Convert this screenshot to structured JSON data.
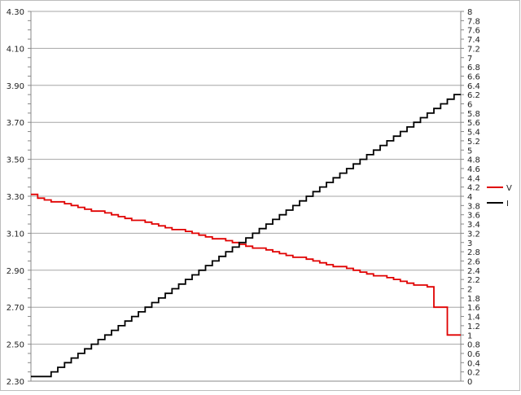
{
  "chart_data": {
    "type": "line",
    "title": "",
    "xlabel": "",
    "grid": true,
    "legend_placement": "right",
    "y_left": {
      "min": 2.3,
      "max": 4.3,
      "major_step": 0.2,
      "minor_step": 0.05,
      "tick_labels": [
        "2.30",
        "2.50",
        "2.70",
        "2.90",
        "3.10",
        "3.30",
        "3.50",
        "3.70",
        "3.90",
        "4.10",
        "4.30"
      ]
    },
    "y_right": {
      "min": 0,
      "max": 8,
      "step": 0.2,
      "tick_labels": [
        "0",
        "0.2",
        "0.4",
        "0.6",
        "0.8",
        "1",
        "1.2",
        "1.4",
        "1.6",
        "1.8",
        "2",
        "2.2",
        "2.4",
        "2.6",
        "2.8",
        "3",
        "3.2",
        "3.4",
        "3.6",
        "3.8",
        "4",
        "4.2",
        "4.4",
        "4.6",
        "4.8",
        "5",
        "5.2",
        "5.4",
        "5.6",
        "5.8",
        "6",
        "6.2",
        "6.4",
        "6.6",
        "6.8",
        "7",
        "7.2",
        "7.4",
        "7.6",
        "7.8",
        "8"
      ]
    },
    "series": [
      {
        "name": "V",
        "axis": "left",
        "color": "#e00000",
        "values": [
          3.31,
          3.29,
          3.28,
          3.27,
          3.27,
          3.26,
          3.25,
          3.24,
          3.23,
          3.22,
          3.22,
          3.21,
          3.2,
          3.19,
          3.18,
          3.17,
          3.17,
          3.16,
          3.15,
          3.14,
          3.13,
          3.12,
          3.12,
          3.11,
          3.1,
          3.09,
          3.08,
          3.07,
          3.07,
          3.06,
          3.05,
          3.04,
          3.03,
          3.02,
          3.02,
          3.01,
          3.0,
          2.99,
          2.98,
          2.97,
          2.97,
          2.96,
          2.95,
          2.94,
          2.93,
          2.92,
          2.92,
          2.91,
          2.9,
          2.89,
          2.88,
          2.87,
          2.87,
          2.86,
          2.85,
          2.84,
          2.83,
          2.82,
          2.82,
          2.81,
          2.7,
          2.7,
          2.55,
          2.55
        ]
      },
      {
        "name": "I",
        "axis": "right",
        "color": "#000000",
        "values": [
          0.1,
          0.1,
          0.1,
          0.2,
          0.3,
          0.4,
          0.5,
          0.6,
          0.7,
          0.8,
          0.9,
          1.0,
          1.1,
          1.2,
          1.3,
          1.4,
          1.5,
          1.6,
          1.7,
          1.8,
          1.9,
          2.0,
          2.1,
          2.2,
          2.3,
          2.4,
          2.5,
          2.6,
          2.7,
          2.8,
          2.9,
          3.0,
          3.1,
          3.2,
          3.3,
          3.4,
          3.5,
          3.6,
          3.7,
          3.8,
          3.9,
          4.0,
          4.1,
          4.2,
          4.3,
          4.4,
          4.5,
          4.6,
          4.7,
          4.8,
          4.9,
          5.0,
          5.1,
          5.2,
          5.3,
          5.4,
          5.5,
          5.6,
          5.7,
          5.8,
          5.9,
          6.0,
          6.1,
          6.2
        ]
      }
    ]
  }
}
